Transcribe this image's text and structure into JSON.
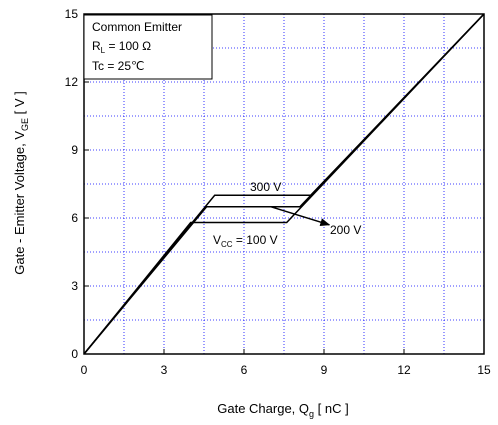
{
  "chart_data": {
    "type": "line",
    "xlabel": "Gate Charge,  Q",
    "xlabel_sub": "g",
    "xlabel_unit": " [ nC ]",
    "ylabel": "Gate - Emitter Voltage,  V",
    "ylabel_sub": "GE",
    "ylabel_unit": " [ V ]",
    "xlim": [
      0,
      15
    ],
    "ylim": [
      0,
      15
    ],
    "xticks": [
      0,
      3,
      6,
      9,
      12,
      15
    ],
    "yticks": [
      0,
      3,
      6,
      9,
      12,
      15
    ],
    "x_minor_grid": [
      1.5,
      4.5,
      7.5,
      10.5,
      13.5
    ],
    "y_minor_grid": [
      1.5,
      4.5,
      7.5,
      10.5,
      13.5
    ],
    "grid": true,
    "conditions": {
      "line1": "Common Emitter",
      "line2_main": "R",
      "line2_sub": "L",
      "line2_rest": " = 100 Ω",
      "line3": "Tc = 25℃"
    },
    "series": [
      {
        "label": "300 V",
        "x": [
          0,
          4.9,
          8.5,
          15
        ],
        "y": [
          0,
          7.0,
          7.0,
          15
        ]
      },
      {
        "label": "200 V",
        "x": [
          0,
          4.6,
          8.1,
          15
        ],
        "y": [
          0,
          6.5,
          6.5,
          15
        ]
      },
      {
        "label": "V_CC = 100 V",
        "x": [
          0,
          4.0,
          7.6,
          15
        ],
        "y": [
          0,
          5.8,
          5.8,
          15
        ]
      }
    ],
    "annotations": {
      "a300": "300 V",
      "a200": "200 V",
      "a100_main": "V",
      "a100_sub": "CC",
      "a100_rest": " = 100 V"
    },
    "arrow": {
      "from": [
        7.0,
        6.5
      ],
      "to": [
        9.2,
        5.7
      ]
    }
  }
}
